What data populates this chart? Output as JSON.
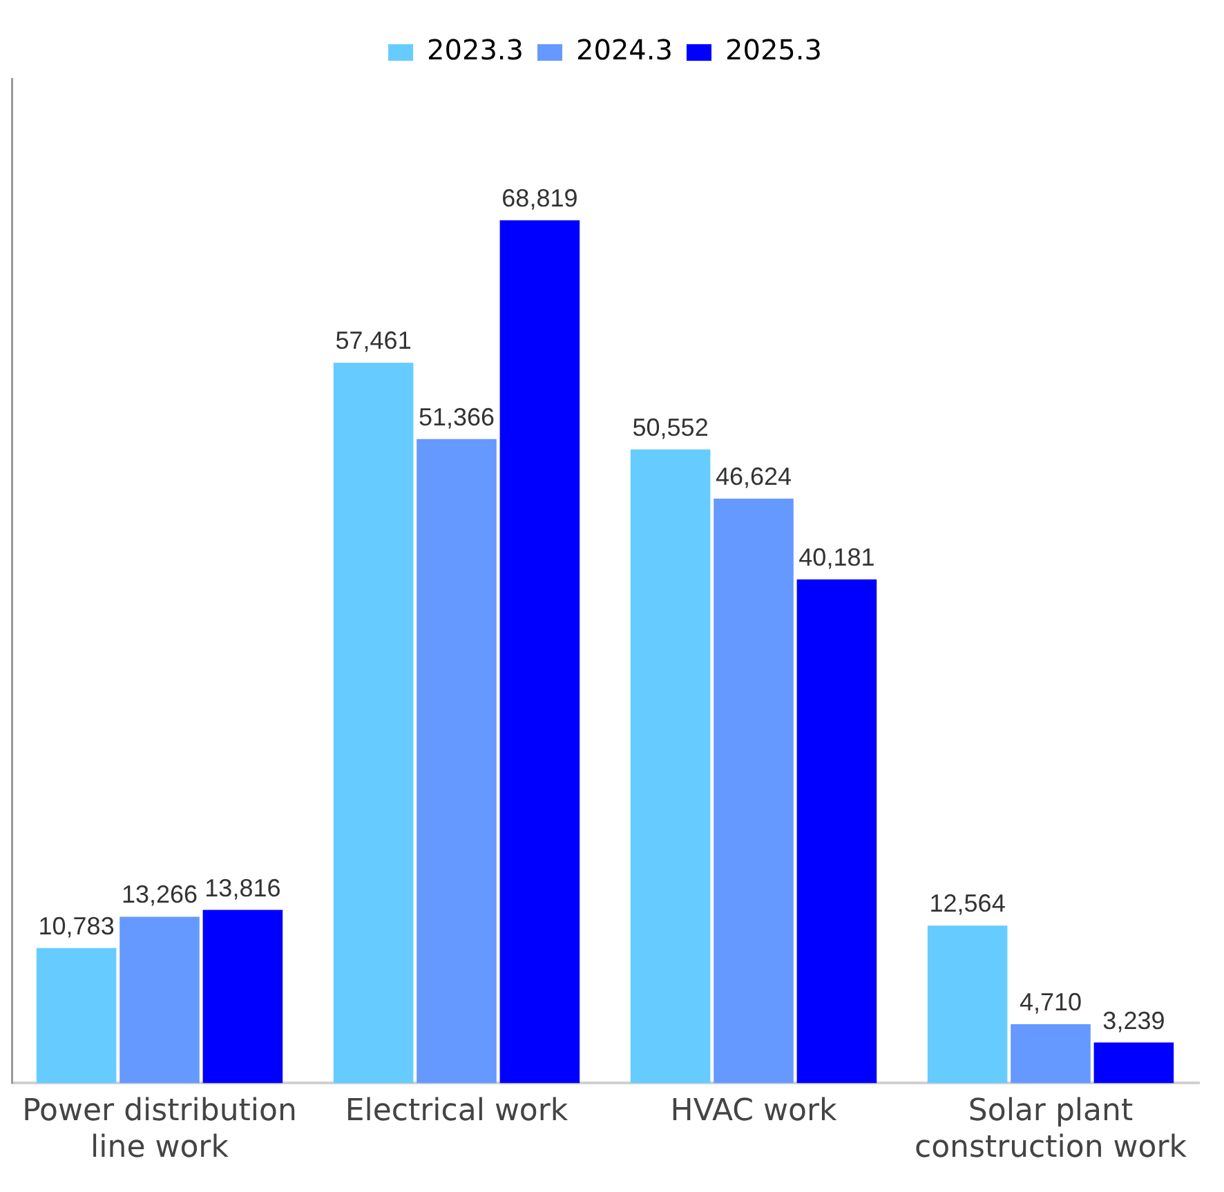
{
  "chart_data": {
    "type": "bar",
    "categories": [
      "Power distribution line work",
      "Electrical work",
      "HVAC work",
      "Solar plant construction work"
    ],
    "series": [
      {
        "name": "2023.3",
        "color": "#66ccff",
        "values": [
          10783,
          57461,
          50552,
          12564
        ],
        "value_labels": [
          "10,783",
          "57,461",
          "50,552",
          "12,564"
        ]
      },
      {
        "name": "2024.3",
        "color": "#6699ff",
        "values": [
          13266,
          51366,
          46624,
          4710
        ],
        "value_labels": [
          "13,266",
          "51,366",
          "46,624",
          "4,710"
        ]
      },
      {
        "name": "2025.3",
        "color": "#0000ff",
        "values": [
          13816,
          68819,
          40181,
          3239
        ],
        "value_labels": [
          "13,816",
          "68,819",
          "40,181",
          "3,239"
        ]
      }
    ],
    "legend": "top",
    "grid": false
  }
}
